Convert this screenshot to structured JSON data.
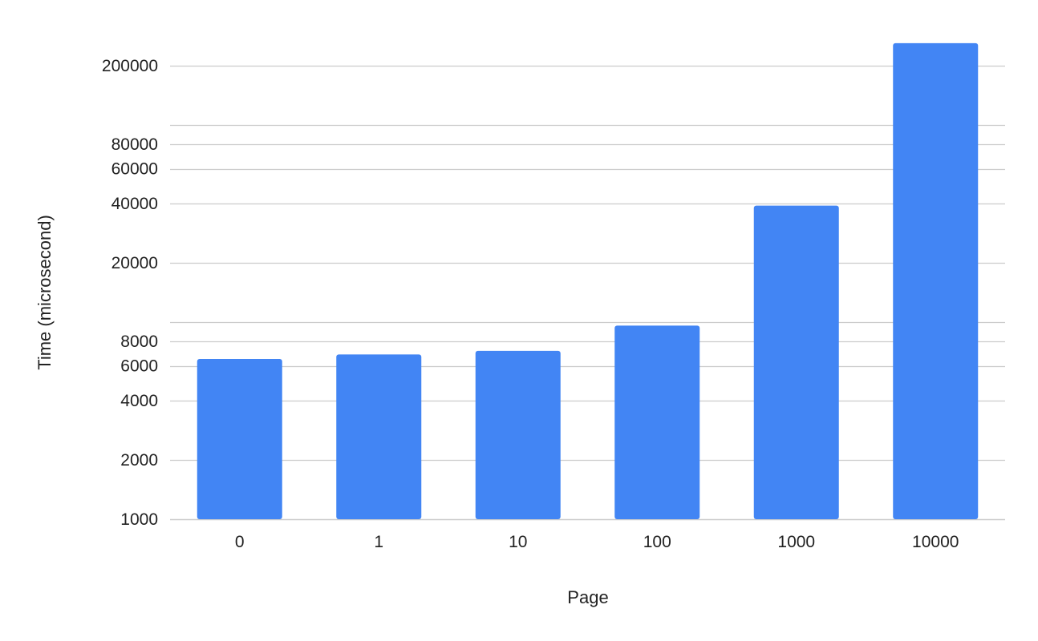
{
  "chart_data": {
    "type": "bar",
    "xlabel": "Page",
    "ylabel": "Time (microsecond)",
    "categories": [
      "0",
      "1",
      "10",
      "100",
      "1000",
      "10000"
    ],
    "values": [
      6500,
      6850,
      7150,
      9600,
      39000,
      260000
    ],
    "yscale": "log",
    "ylim": [
      1000,
      260000
    ],
    "yticks": [
      1000,
      2000,
      4000,
      6000,
      8000,
      20000,
      40000,
      60000,
      80000,
      200000
    ],
    "ytick_labels": [
      "1000",
      "2000",
      "4000",
      "6000",
      "8000",
      "20000",
      "40000",
      "60000",
      "80000",
      "200000"
    ],
    "extra_gridlines": [
      10000,
      100000
    ],
    "grid": true,
    "legend": "none",
    "bar_color": "#4285f4",
    "grid_color": "#cccccc"
  }
}
